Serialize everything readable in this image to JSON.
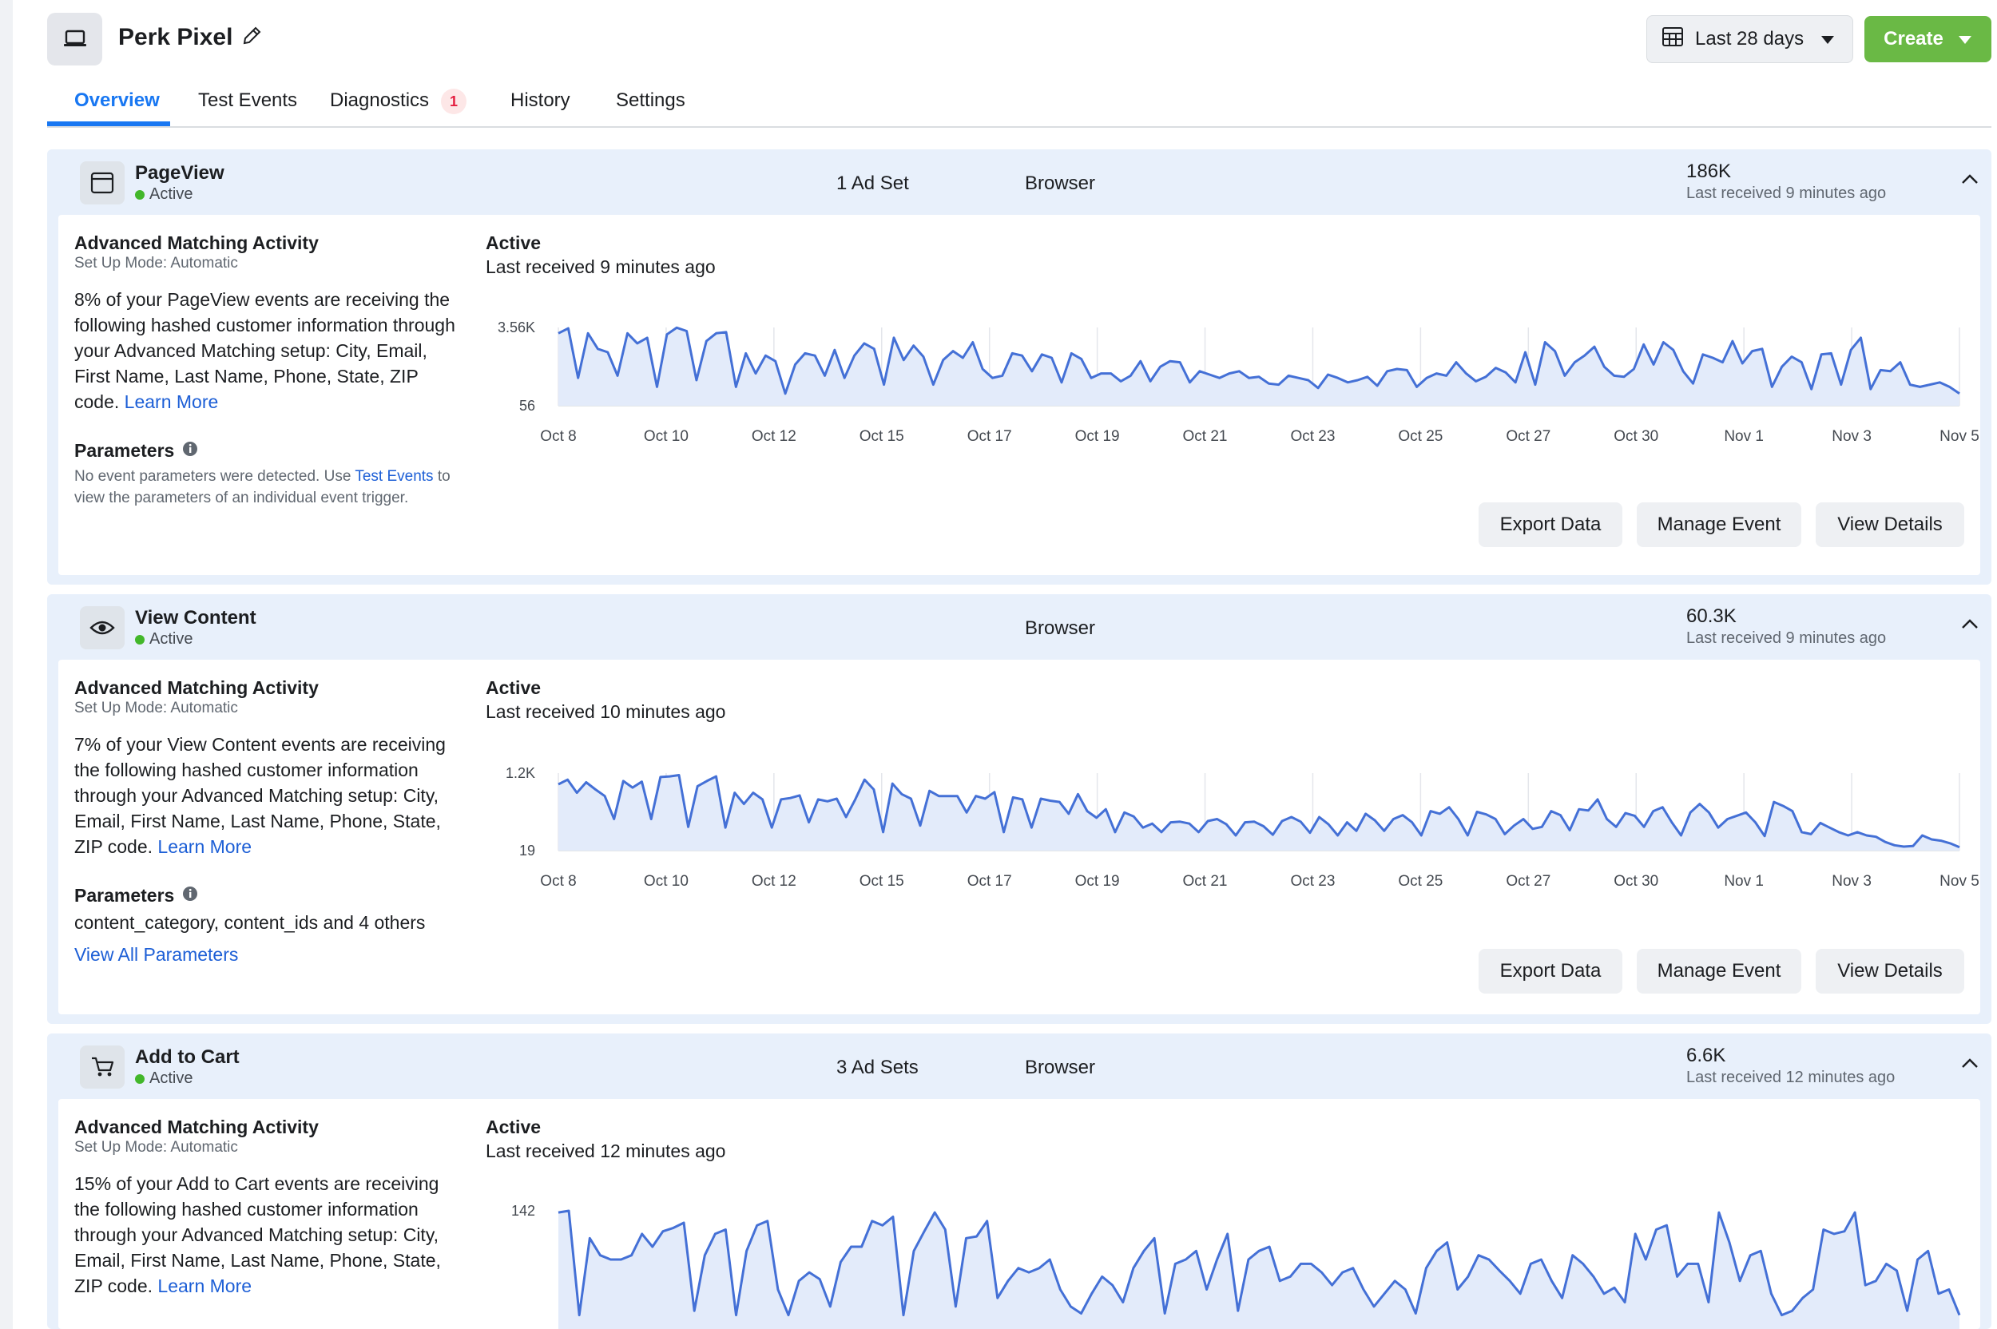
{
  "header": {
    "title": "Perk Pixel",
    "date_range_label": "Last 28 days",
    "create_label": "Create"
  },
  "tabs": [
    {
      "label": "Overview",
      "active": true
    },
    {
      "label": "Test Events"
    },
    {
      "label": "Diagnostics",
      "badge": "1"
    },
    {
      "label": "History"
    },
    {
      "label": "Settings"
    }
  ],
  "events": [
    {
      "name": "PageView",
      "status": "Active",
      "icon": "browser-window-icon",
      "ad_sets": "1 Ad Set",
      "source": "Browser",
      "count": "186K",
      "last_received": "Last received 9 minutes ago",
      "am_title": "Advanced Matching Activity",
      "am_mode": "Set Up Mode: Automatic",
      "am_desc": "8% of your PageView events are receiving the following hashed customer information through your Advanced Matching setup: City, Email, First Name, Last Name, Phone, State, ZIP code.",
      "learn_more": "Learn More",
      "params_title": "Parameters",
      "params_note_pre": "No event parameters were detected. Use ",
      "params_note_link": "Test Events",
      "params_note_post": " to view the parameters of an individual event trigger.",
      "chart_status": "Active",
      "chart_last": "Last received 9 minutes ago",
      "buttons": {
        "export": "Export Data",
        "manage": "Manage Event",
        "details": "View Details"
      }
    },
    {
      "name": "View Content",
      "status": "Active",
      "icon": "eye-icon",
      "ad_sets": "",
      "source": "Browser",
      "count": "60.3K",
      "last_received": "Last received 9 minutes ago",
      "am_title": "Advanced Matching Activity",
      "am_mode": "Set Up Mode: Automatic",
      "am_desc": "7% of your View Content events are receiving the following hashed customer information through your Advanced Matching setup: City, Email, First Name, Last Name, Phone, State, ZIP code.",
      "learn_more": "Learn More",
      "params_title": "Parameters",
      "params_list": "content_category, content_ids and 4 others",
      "view_all_params": "View All Parameters",
      "chart_status": "Active",
      "chart_last": "Last received 10 minutes ago",
      "buttons": {
        "export": "Export Data",
        "manage": "Manage Event",
        "details": "View Details"
      }
    },
    {
      "name": "Add to Cart",
      "status": "Active",
      "icon": "cart-icon",
      "ad_sets": "3 Ad Sets",
      "source": "Browser",
      "count": "6.6K",
      "last_received": "Last received 12 minutes ago",
      "am_title": "Advanced Matching Activity",
      "am_mode": "Set Up Mode: Automatic",
      "am_desc": "15% of your Add to Cart events are receiving the following hashed customer information through your Advanced Matching setup: City, Email, First Name, Last Name, Phone, State, ZIP code.",
      "learn_more": "Learn More",
      "chart_status": "Active",
      "chart_last": "Last received 12 minutes ago"
    }
  ],
  "chart_data": [
    {
      "type": "area",
      "ylabel_ticks": [
        "3.56K",
        "56"
      ],
      "ylim": [
        56,
        3560
      ],
      "x_tick_labels": [
        "Oct 8",
        "Oct 10",
        "Oct 12",
        "Oct 15",
        "Oct 17",
        "Oct 19",
        "Oct 21",
        "Oct 23",
        "Oct 25",
        "Oct 27",
        "Oct 30",
        "Nov 1",
        "Nov 3",
        "Nov 5"
      ],
      "values": [
        3300,
        3520,
        1300,
        3300,
        2600,
        2450,
        1400,
        3300,
        2850,
        3100,
        900,
        3250,
        3550,
        3400,
        1200,
        2950,
        3300,
        3350,
        900,
        2400,
        1500,
        2300,
        2050,
        600,
        1900,
        2400,
        2300,
        1400,
        2550,
        1300,
        2300,
        2850,
        2600,
        1000,
        3100,
        2100,
        2750,
        2250,
        1000,
        2100,
        2500,
        2200,
        2900,
        1700,
        1300,
        1400,
        2400,
        2300,
        1600,
        2350,
        2200,
        1100,
        2400,
        2150,
        1300,
        1500,
        1500,
        1150,
        1400,
        2050,
        1150,
        1800,
        2050,
        2000,
        1100,
        1600,
        1450,
        1300,
        1500,
        1600,
        1300,
        1350,
        1050,
        1000,
        1400,
        1300,
        1200,
        850,
        1450,
        1300,
        1100,
        1200,
        1350,
        950,
        1600,
        1700,
        1650,
        900,
        1300,
        1500,
        1400,
        2000,
        1500,
        1150,
        1350,
        1750,
        1550,
        1100,
        2450,
        1000,
        2900,
        2500,
        1400,
        2000,
        2300,
        2700,
        1800,
        1400,
        1350,
        1700,
        2800,
        1900,
        2900,
        2550,
        1600,
        1050,
        2350,
        2200,
        2000,
        2950,
        1950,
        2500,
        2600,
        900,
        1800,
        2250,
        2000,
        800,
        2350,
        2400,
        1000,
        2550,
        3100,
        800,
        1650,
        1600,
        2000,
        1000,
        900,
        1000,
        1100,
        900,
        600
      ],
      "grid_x": true
    },
    {
      "type": "area",
      "ylabel_ticks": [
        "1.2K",
        "19"
      ],
      "ylim": [
        19,
        1200
      ],
      "x_tick_labels": [
        "Oct 8",
        "Oct 10",
        "Oct 12",
        "Oct 15",
        "Oct 17",
        "Oct 19",
        "Oct 21",
        "Oct 23",
        "Oct 25",
        "Oct 27",
        "Oct 30",
        "Nov 1",
        "Nov 3",
        "Nov 5"
      ],
      "values": [
        1030,
        1100,
        900,
        1060,
        950,
        850,
        500,
        1080,
        980,
        1070,
        500,
        1140,
        1150,
        1170,
        380,
        1000,
        1080,
        1150,
        370,
        900,
        730,
        900,
        800,
        370,
        800,
        820,
        860,
        450,
        800,
        770,
        810,
        530,
        800,
        1100,
        950,
        300,
        1040,
        880,
        810,
        400,
        930,
        850,
        850,
        850,
        600,
        850,
        810,
        910,
        300,
        830,
        800,
        370,
        810,
        780,
        760,
        580,
        880,
        620,
        520,
        650,
        300,
        600,
        540,
        370,
        430,
        300,
        450,
        460,
        430,
        300,
        470,
        500,
        420,
        250,
        450,
        460,
        390,
        260,
        470,
        530,
        460,
        290,
        530,
        420,
        250,
        450,
        320,
        580,
        480,
        320,
        500,
        560,
        450,
        250,
        620,
        580,
        680,
        500,
        250,
        610,
        570,
        500,
        270,
        400,
        500,
        350,
        380,
        620,
        560,
        330,
        650,
        630,
        800,
        500,
        380,
        590,
        550,
        380,
        620,
        680,
        450,
        250,
        600,
        730,
        600,
        370,
        500,
        550,
        600,
        450,
        240,
        760,
        700,
        620,
        300,
        270,
        440,
        370,
        300,
        250,
        300,
        250,
        230,
        150,
        100,
        80,
        90,
        250,
        190,
        170,
        130,
        70
      ]
    },
    {
      "type": "area",
      "ylabel_ticks": [
        "142"
      ],
      "x_tick_labels": [],
      "values": [
        140,
        142,
        20,
        110,
        90,
        85,
        85,
        90,
        115,
        100,
        118,
        122,
        128,
        25,
        90,
        115,
        120,
        20,
        95,
        125,
        130,
        50,
        20,
        60,
        70,
        62,
        30,
        82,
        100,
        100,
        130,
        125,
        135,
        20,
        95,
        118,
        140,
        120,
        30,
        110,
        112,
        130,
        40,
        60,
        75,
        70,
        75,
        85,
        50,
        30,
        22,
        45,
        65,
        55,
        35,
        75,
        95,
        110,
        22,
        80,
        85,
        95,
        50,
        85,
        115,
        25,
        85,
        95,
        100,
        60,
        65,
        80,
        80,
        70,
        55,
        70,
        75,
        50,
        30,
        45,
        60,
        50,
        22,
        75,
        95,
        105,
        50,
        65,
        90,
        85,
        72,
        60,
        45,
        80,
        85,
        60,
        40,
        90,
        80,
        65,
        45,
        52,
        35,
        115,
        85,
        120,
        125,
        65,
        80,
        80,
        35,
        140,
        105,
        60,
        90,
        95,
        45,
        20,
        25,
        40,
        50,
        120,
        115,
        118,
        140,
        55,
        60,
        80,
        72,
        25,
        85,
        95,
        45,
        50,
        20
      ]
    }
  ]
}
